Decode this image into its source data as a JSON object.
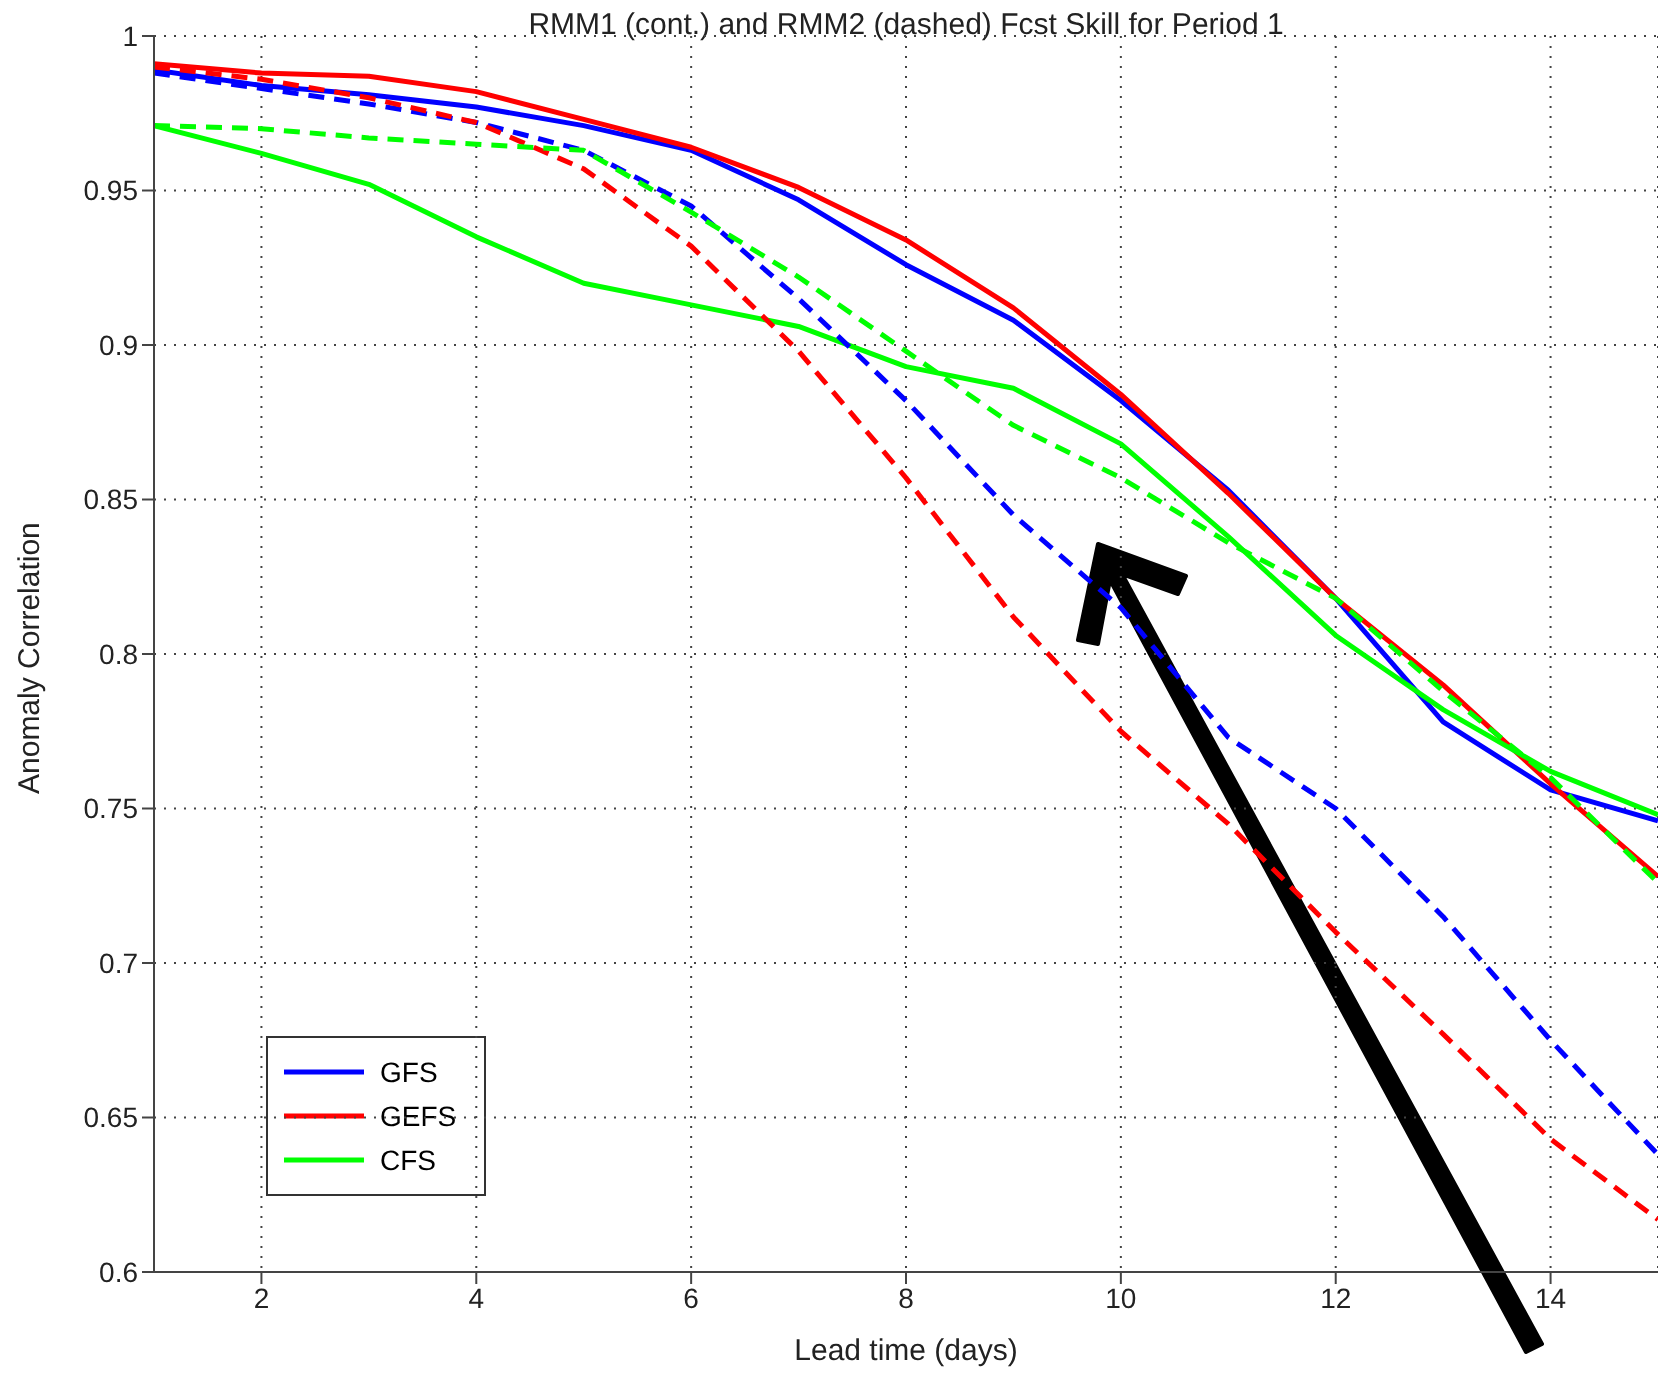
{
  "chart_data": {
    "type": "line",
    "title": "RMM1 (cont.) and RMM2 (dashed) Fcst Skill for Period 1",
    "xlabel": "Lead time (days)",
    "ylabel": "Anomaly Correlation",
    "x": [
      1,
      2,
      3,
      4,
      5,
      6,
      7,
      8,
      9,
      10,
      11,
      12,
      13,
      14,
      15
    ],
    "xlim": [
      1,
      15
    ],
    "xticks": [
      2,
      4,
      6,
      8,
      10,
      12,
      14
    ],
    "ylim": [
      0.6,
      1
    ],
    "yticks": [
      0.6,
      0.65,
      0.7,
      0.75,
      0.8,
      0.85,
      0.9,
      0.95,
      1
    ],
    "grid": true,
    "legend": "bottom left",
    "marker": "none",
    "line_style": "solid",
    "series": [
      {
        "name": "GFS",
        "color": "#0000ff",
        "values": [
          0.989,
          0.984,
          0.981,
          0.977,
          0.971,
          0.963,
          0.947,
          0.926,
          0.908,
          0.882,
          0.853,
          0.818,
          0.778,
          0.756,
          0.746
        ]
      },
      {
        "name": "GEFS",
        "color": "#ff0000",
        "values": [
          0.991,
          0.988,
          0.987,
          0.982,
          0.973,
          0.964,
          0.951,
          0.934,
          0.912,
          0.884,
          0.852,
          0.818,
          0.79,
          0.758,
          0.728
        ]
      },
      {
        "name": "CFS",
        "color": "#00ff00",
        "values": [
          0.971,
          0.962,
          0.952,
          0.935,
          0.92,
          0.913,
          0.906,
          0.893,
          0.886,
          0.868,
          0.838,
          0.806,
          0.782,
          0.762,
          0.748
        ]
      },
      {
        "color": "#0000ff",
        "line_style": "dashed",
        "values": [
          0.988,
          0.983,
          0.978,
          0.972,
          0.963,
          0.945,
          0.915,
          0.882,
          0.845,
          0.815,
          0.773,
          0.75,
          0.715,
          0.675,
          0.638
        ]
      },
      {
        "color": "#ff0000",
        "line_style": "dashed",
        "values": [
          0.99,
          0.986,
          0.98,
          0.972,
          0.957,
          0.932,
          0.898,
          0.857,
          0.812,
          0.775,
          0.745,
          0.71,
          0.677,
          0.643,
          0.617
        ]
      },
      {
        "color": "#00ff00",
        "line_style": "dashed",
        "values": [
          0.971,
          0.97,
          0.967,
          0.965,
          0.963,
          0.943,
          0.922,
          0.898,
          0.874,
          0.857,
          0.836,
          0.818,
          0.788,
          0.76,
          0.726
        ]
      }
    ]
  }
}
